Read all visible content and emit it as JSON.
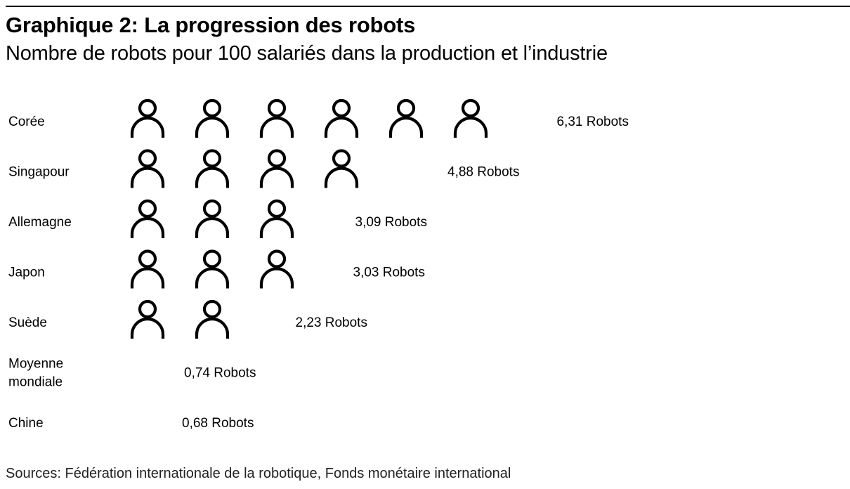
{
  "title": "Graphique 2: La progression des robots",
  "subtitle": "Nombre de robots pour 100 salariés dans la production et l’industrie",
  "source": "Sources: Fédération internationale de la robotique, Fonds monétaire international",
  "chart_data": {
    "type": "bar",
    "categories": [
      "Corée",
      "Singapour",
      "Allemagne",
      "Japon",
      "Suède",
      "Moyenne mondiale",
      "Chine"
    ],
    "category_lines": [
      [
        "Corée"
      ],
      [
        "Singapour"
      ],
      [
        "Allemagne"
      ],
      [
        "Japon"
      ],
      [
        "Suède"
      ],
      [
        "Moyenne",
        "mondiale"
      ],
      [
        "Chine"
      ]
    ],
    "values": [
      6.31,
      4.88,
      3.09,
      3.03,
      2.23,
      0.74,
      0.68
    ],
    "value_labels": [
      "6,31 Robots",
      "4,88 Robots",
      "3,09 Robots",
      "3,03 Robots",
      "2,23 Robots",
      "0,74 Robots",
      "0,68 Robots"
    ],
    "unit": "Robots",
    "icon": "person-icon",
    "icon_unit_value": 1,
    "icon_color": "#000000"
  }
}
